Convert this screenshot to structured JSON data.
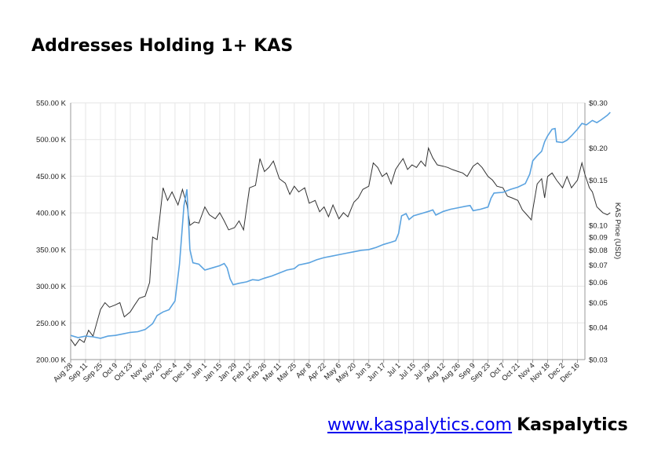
{
  "title": "Addresses Holding 1+ KAS",
  "footer": {
    "link_text": "www.kaspalytics.com",
    "brand": "Kaspalytics"
  },
  "colors": {
    "addresses_line": "#5ba3e0",
    "price_line": "#333333",
    "grid": "#e6e6e6"
  },
  "chart_data": {
    "type": "line",
    "title": "Addresses Holding 1+ KAS",
    "xlabel": "",
    "ylabel": "",
    "y2label": "KAS Price (USD)",
    "grid": true,
    "x_ticks": [
      "Aug 28",
      "Sep 11",
      "Sep 25",
      "Oct 9",
      "Oct 23",
      "Nov 6",
      "Nov 20",
      "Dec 4",
      "Dec 18",
      "Jan 1",
      "Jan 15",
      "Jan 29",
      "Feb 12",
      "Feb 26",
      "Mar 11",
      "Mar 25",
      "Apr 8",
      "Apr 22",
      "May 6",
      "May 20",
      "Jun 3",
      "Jun 17",
      "Jul 1",
      "Jul 15",
      "Jul 29",
      "Aug 12",
      "Aug 26",
      "Sep 9",
      "Sep 23",
      "Oct 7",
      "Oct 21",
      "Nov 4",
      "Nov 18",
      "Dec 2",
      "Dec 16"
    ],
    "y_ticks": [
      "200.00 K",
      "250.00 K",
      "300.00 K",
      "350.00 K",
      "400.00 K",
      "450.00 K",
      "500.00 K",
      "550.00 K"
    ],
    "y2_ticks": [
      "$0.03",
      "$0.04",
      "$0.05",
      "$0.06",
      "$0.07",
      "$0.08",
      "$0.09",
      "$0.10",
      "$0.15",
      "$0.20",
      "$0.30"
    ],
    "ylim": [
      200,
      550
    ],
    "y_unit": "K",
    "y2lim": [
      0.03,
      0.3
    ],
    "y2_scale": "log",
    "series": [
      {
        "axis": "left",
        "points": [
          [
            0,
            233
          ],
          [
            0.5,
            230
          ],
          [
            1,
            232
          ],
          [
            1.5,
            231
          ],
          [
            2,
            229
          ],
          [
            2.5,
            232
          ],
          [
            3,
            233
          ],
          [
            3.5,
            235
          ],
          [
            4,
            237
          ],
          [
            4.5,
            238
          ],
          [
            5,
            241
          ],
          [
            5.5,
            249
          ],
          [
            5.8,
            260
          ],
          [
            6.2,
            265
          ],
          [
            6.6,
            268
          ],
          [
            7,
            280
          ],
          [
            7.3,
            330
          ],
          [
            7.6,
            410
          ],
          [
            7.8,
            432
          ],
          [
            8,
            350
          ],
          [
            8.2,
            332
          ],
          [
            8.6,
            330
          ],
          [
            9,
            322
          ],
          [
            9.5,
            325
          ],
          [
            10,
            328
          ],
          [
            10.3,
            331
          ],
          [
            10.5,
            325
          ],
          [
            10.7,
            310
          ],
          [
            10.9,
            302
          ],
          [
            11.3,
            304
          ],
          [
            11.8,
            306
          ],
          [
            12.2,
            309
          ],
          [
            12.6,
            308
          ],
          [
            13,
            311
          ],
          [
            13.5,
            314
          ],
          [
            14,
            318
          ],
          [
            14.5,
            322
          ],
          [
            15,
            324
          ],
          [
            15.3,
            329
          ],
          [
            16,
            332
          ],
          [
            16.5,
            336
          ],
          [
            17,
            339
          ],
          [
            17.5,
            341
          ],
          [
            18,
            343
          ],
          [
            18.5,
            345
          ],
          [
            19,
            347
          ],
          [
            19.5,
            349
          ],
          [
            20,
            350
          ],
          [
            20.5,
            353
          ],
          [
            21,
            357
          ],
          [
            21.5,
            360
          ],
          [
            21.8,
            362
          ],
          [
            22,
            372
          ],
          [
            22.2,
            396
          ],
          [
            22.5,
            399
          ],
          [
            22.7,
            391
          ],
          [
            23,
            396
          ],
          [
            23.5,
            399
          ],
          [
            24,
            402
          ],
          [
            24.3,
            404
          ],
          [
            24.5,
            397
          ],
          [
            25,
            402
          ],
          [
            25.5,
            405
          ],
          [
            26,
            407
          ],
          [
            26.5,
            409
          ],
          [
            26.8,
            410
          ],
          [
            27,
            403
          ],
          [
            27.5,
            405
          ],
          [
            28,
            408
          ],
          [
            28.2,
            420
          ],
          [
            28.4,
            427
          ],
          [
            29,
            428
          ],
          [
            29.5,
            432
          ],
          [
            30,
            435
          ],
          [
            30.5,
            440
          ],
          [
            30.8,
            453
          ],
          [
            31,
            471
          ],
          [
            31.3,
            478
          ],
          [
            31.6,
            484
          ],
          [
            31.8,
            497
          ],
          [
            32,
            505
          ],
          [
            32.3,
            514
          ],
          [
            32.5,
            515
          ],
          [
            32.6,
            497
          ],
          [
            33,
            496
          ],
          [
            33.3,
            499
          ],
          [
            33.6,
            505
          ],
          [
            34,
            514
          ],
          [
            34.3,
            522
          ],
          [
            34.6,
            520
          ],
          [
            35,
            526
          ],
          [
            35.3,
            523
          ],
          [
            35.6,
            527
          ],
          [
            36,
            533
          ],
          [
            36.2,
            537
          ]
        ]
      },
      {
        "axis": "right",
        "points": [
          [
            0,
            0.036
          ],
          [
            0.3,
            0.034
          ],
          [
            0.6,
            0.036
          ],
          [
            0.9,
            0.035
          ],
          [
            1.2,
            0.039
          ],
          [
            1.5,
            0.037
          ],
          [
            2,
            0.047
          ],
          [
            2.3,
            0.05
          ],
          [
            2.6,
            0.048
          ],
          [
            3,
            0.049
          ],
          [
            3.3,
            0.05
          ],
          [
            3.6,
            0.044
          ],
          [
            4,
            0.046
          ],
          [
            4.3,
            0.049
          ],
          [
            4.6,
            0.052
          ],
          [
            5,
            0.053
          ],
          [
            5.3,
            0.06
          ],
          [
            5.5,
            0.09
          ],
          [
            5.8,
            0.088
          ],
          [
            6,
            0.11
          ],
          [
            6.2,
            0.14
          ],
          [
            6.5,
            0.125
          ],
          [
            6.8,
            0.135
          ],
          [
            7.2,
            0.12
          ],
          [
            7.5,
            0.138
          ],
          [
            7.8,
            0.12
          ],
          [
            8,
            0.1
          ],
          [
            8.3,
            0.103
          ],
          [
            8.6,
            0.102
          ],
          [
            9,
            0.118
          ],
          [
            9.3,
            0.11
          ],
          [
            9.7,
            0.106
          ],
          [
            10,
            0.112
          ],
          [
            10.3,
            0.104
          ],
          [
            10.6,
            0.096
          ],
          [
            11,
            0.098
          ],
          [
            11.3,
            0.104
          ],
          [
            11.6,
            0.096
          ],
          [
            12,
            0.14
          ],
          [
            12.4,
            0.143
          ],
          [
            12.7,
            0.182
          ],
          [
            13,
            0.162
          ],
          [
            13.3,
            0.168
          ],
          [
            13.6,
            0.178
          ],
          [
            14,
            0.152
          ],
          [
            14.4,
            0.146
          ],
          [
            14.7,
            0.132
          ],
          [
            15,
            0.142
          ],
          [
            15.3,
            0.135
          ],
          [
            15.7,
            0.14
          ],
          [
            16,
            0.122
          ],
          [
            16.4,
            0.125
          ],
          [
            16.7,
            0.113
          ],
          [
            17,
            0.118
          ],
          [
            17.3,
            0.108
          ],
          [
            17.6,
            0.12
          ],
          [
            18,
            0.106
          ],
          [
            18.3,
            0.112
          ],
          [
            18.6,
            0.108
          ],
          [
            19,
            0.123
          ],
          [
            19.3,
            0.128
          ],
          [
            19.6,
            0.138
          ],
          [
            20,
            0.142
          ],
          [
            20.3,
            0.175
          ],
          [
            20.6,
            0.168
          ],
          [
            20.9,
            0.155
          ],
          [
            21.2,
            0.16
          ],
          [
            21.5,
            0.145
          ],
          [
            21.8,
            0.165
          ],
          [
            22,
            0.172
          ],
          [
            22.3,
            0.182
          ],
          [
            22.6,
            0.165
          ],
          [
            22.9,
            0.172
          ],
          [
            23.2,
            0.168
          ],
          [
            23.5,
            0.178
          ],
          [
            23.8,
            0.17
          ],
          [
            24,
            0.2
          ],
          [
            24.3,
            0.183
          ],
          [
            24.6,
            0.172
          ],
          [
            25,
            0.17
          ],
          [
            25.3,
            0.168
          ],
          [
            25.6,
            0.165
          ],
          [
            26,
            0.162
          ],
          [
            26.3,
            0.16
          ],
          [
            26.6,
            0.155
          ],
          [
            27,
            0.17
          ],
          [
            27.3,
            0.175
          ],
          [
            27.6,
            0.168
          ],
          [
            28,
            0.155
          ],
          [
            28.3,
            0.15
          ],
          [
            28.6,
            0.142
          ],
          [
            29,
            0.14
          ],
          [
            29.3,
            0.13
          ],
          [
            29.6,
            0.128
          ],
          [
            30,
            0.125
          ],
          [
            30.3,
            0.115
          ],
          [
            30.6,
            0.11
          ],
          [
            30.9,
            0.105
          ],
          [
            31,
            0.115
          ],
          [
            31.3,
            0.145
          ],
          [
            31.6,
            0.152
          ],
          [
            31.8,
            0.128
          ],
          [
            32,
            0.155
          ],
          [
            32.3,
            0.16
          ],
          [
            32.6,
            0.15
          ],
          [
            33,
            0.14
          ],
          [
            33.3,
            0.155
          ],
          [
            33.6,
            0.14
          ],
          [
            34,
            0.15
          ],
          [
            34.3,
            0.175
          ],
          [
            34.5,
            0.158
          ],
          [
            34.8,
            0.14
          ],
          [
            35,
            0.135
          ],
          [
            35.3,
            0.118
          ],
          [
            35.7,
            0.112
          ],
          [
            36,
            0.11
          ],
          [
            36.2,
            0.112
          ]
        ]
      }
    ]
  }
}
